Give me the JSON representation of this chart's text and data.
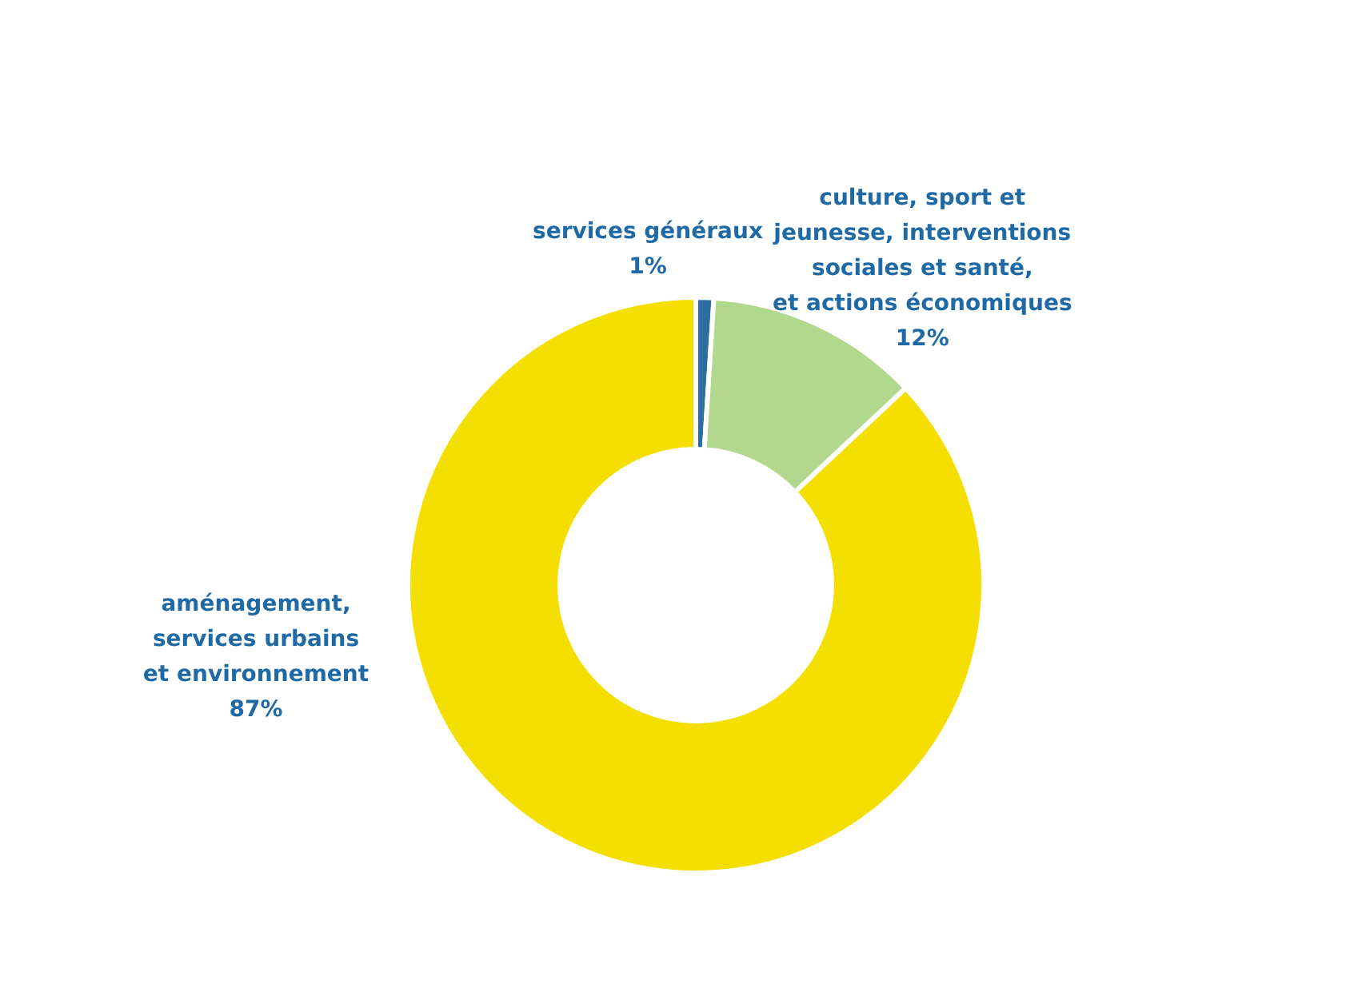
{
  "chart_data": {
    "type": "donut",
    "categories": [
      "services généraux",
      "culture, sport et\njeunesse, interventions\nsociales et santé,\net actions économiques",
      "aménagement,\nservices urbains\net environnement"
    ],
    "values": [
      1,
      12,
      87
    ],
    "colors": [
      "#2c6ea3",
      "#b2d88e",
      "#f4df00"
    ],
    "value_labels": [
      "1%",
      "12%",
      "87%"
    ]
  }
}
